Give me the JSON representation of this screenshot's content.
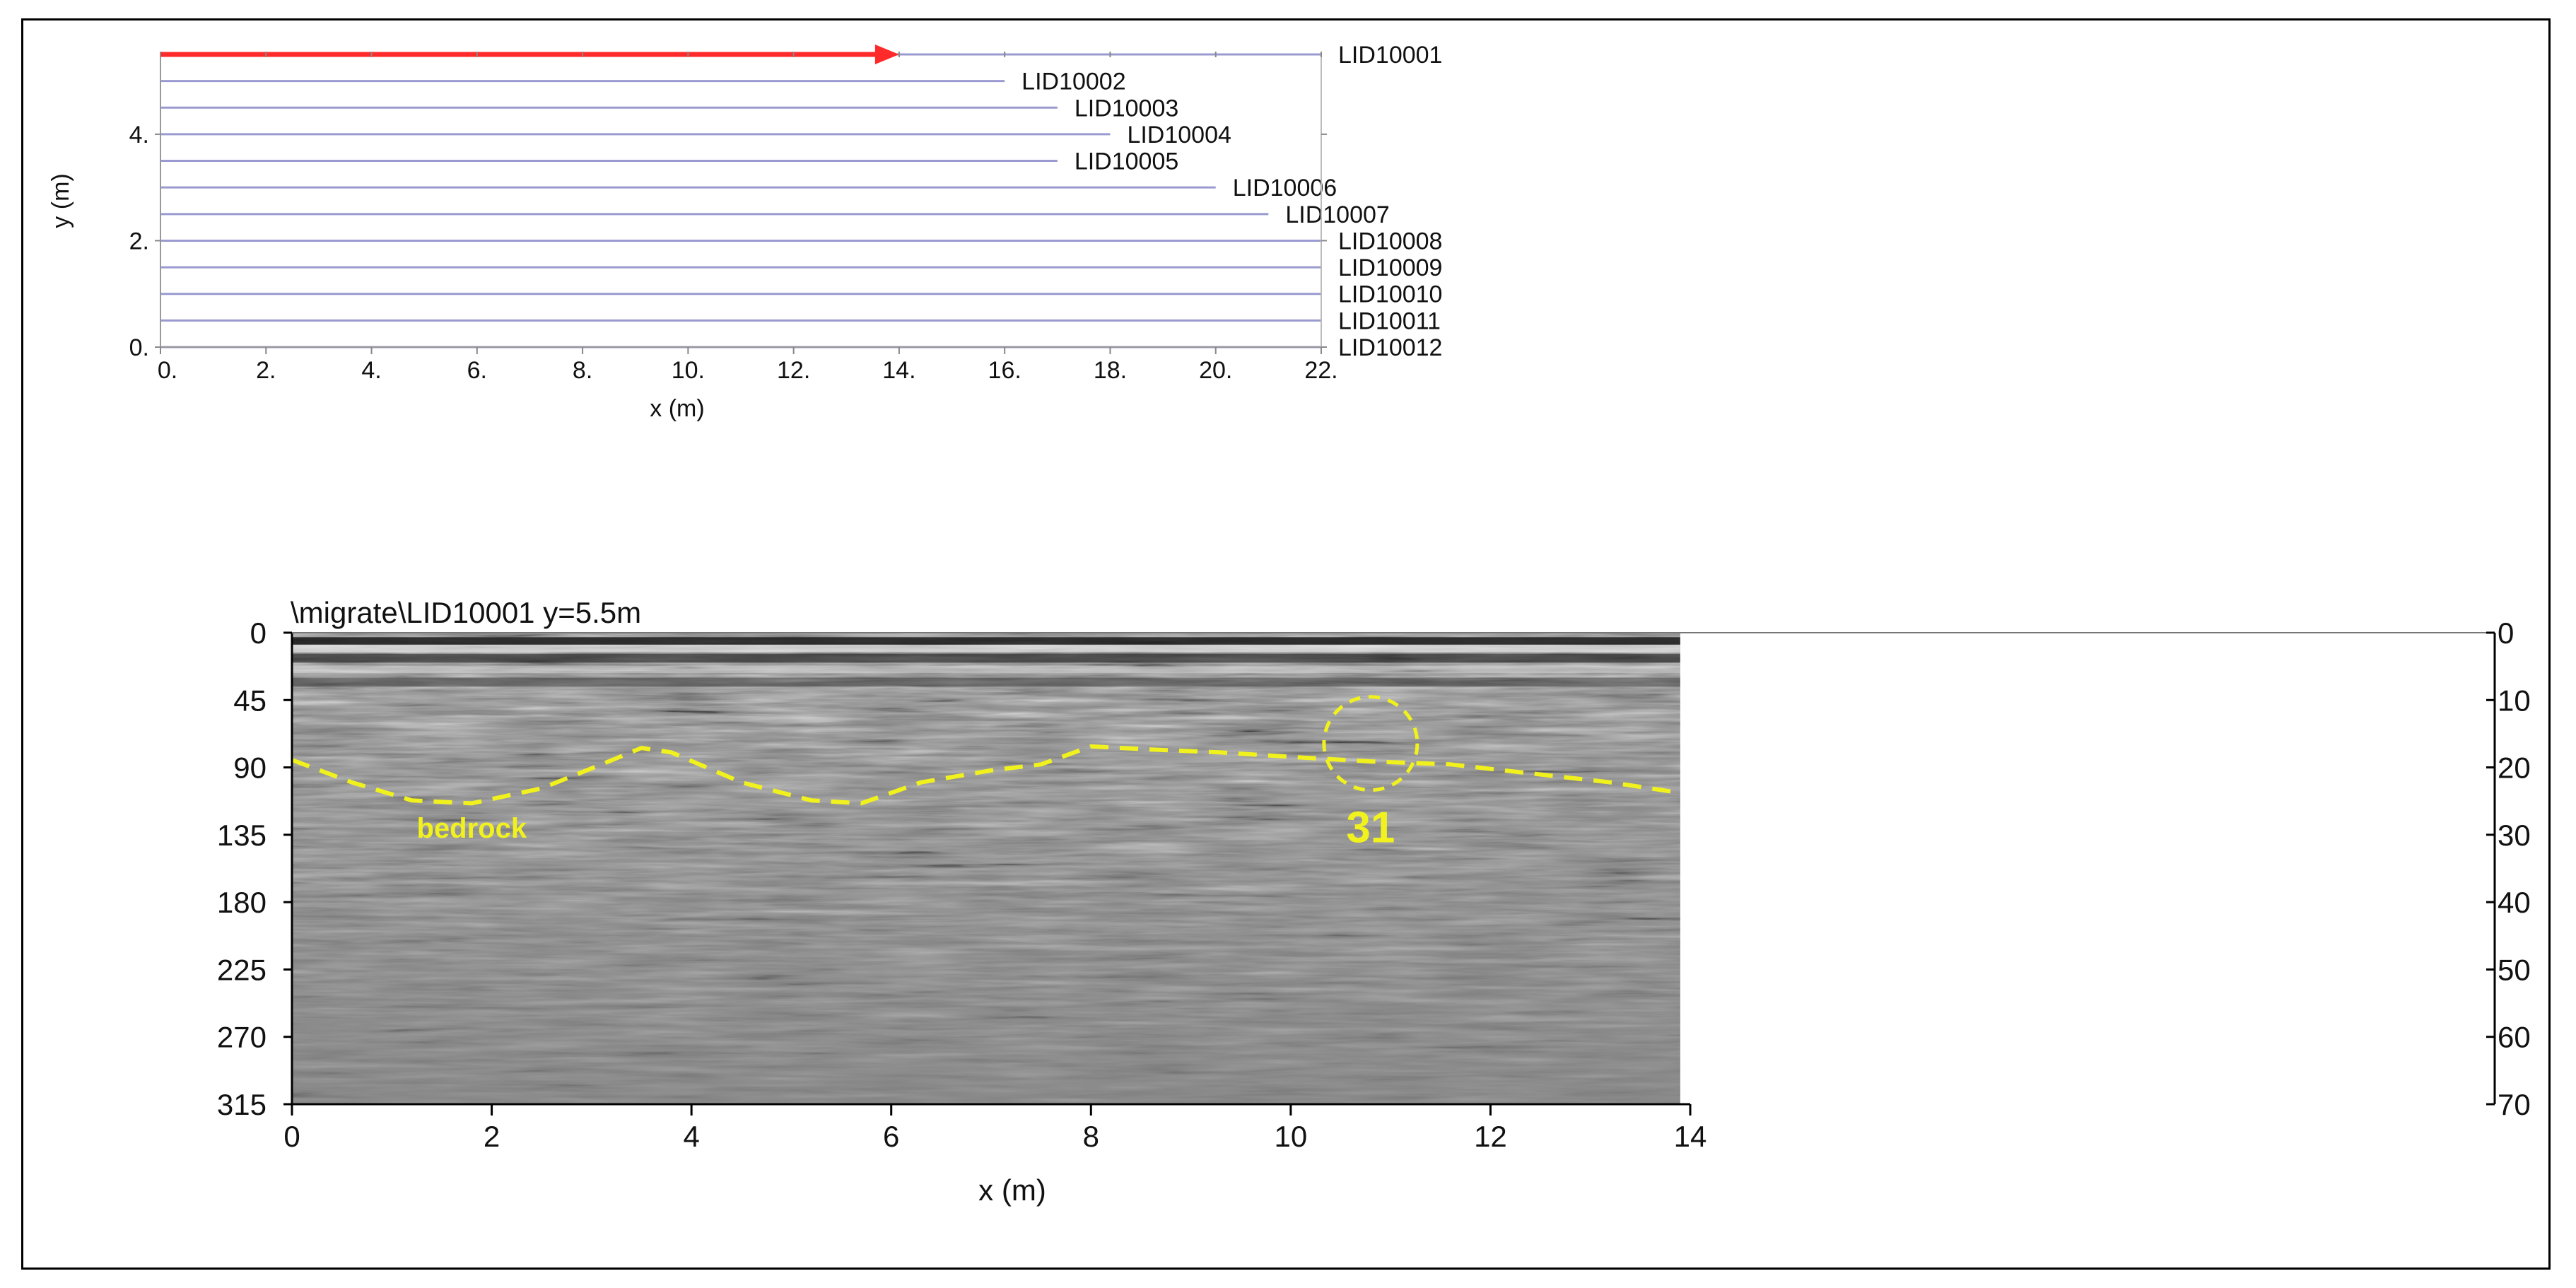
{
  "colors": {
    "survey_line": "#9a9ad0",
    "direction_arrow": "#ff2a2a",
    "annotation": "#f1f21d",
    "radargram_base": "#808080"
  },
  "chart_data": [
    {
      "type": "line",
      "panel": "survey-layout",
      "xlabel": "x (m)",
      "ylabel": "y (m)",
      "xlim": [
        0,
        22
      ],
      "ylim": [
        0,
        5.5
      ],
      "x_ticks": [
        "0.",
        "2.",
        "4.",
        "6.",
        "8.",
        "10.",
        "12.",
        "14.",
        "16.",
        "18.",
        "20.",
        "22."
      ],
      "y_ticks": [
        "0.",
        "2.",
        "4."
      ],
      "x_tick_values": [
        0,
        2,
        4,
        6,
        8,
        10,
        12,
        14,
        16,
        18,
        20,
        22
      ],
      "y_tick_values": [
        0,
        2,
        4
      ],
      "direction_arrow": {
        "x_start": 0,
        "x_end": 14,
        "y": 5.5
      },
      "series": [
        {
          "label": "LID10001",
          "y": 5.5,
          "x_start": 0,
          "x_end": 22
        },
        {
          "label": "LID10002",
          "y": 5.0,
          "x_start": 0,
          "x_end": 16
        },
        {
          "label": "LID10003",
          "y": 4.5,
          "x_start": 0,
          "x_end": 17
        },
        {
          "label": "LID10004",
          "y": 4.0,
          "x_start": 0,
          "x_end": 18
        },
        {
          "label": "LID10005",
          "y": 3.5,
          "x_start": 0,
          "x_end": 17
        },
        {
          "label": "LID10006",
          "y": 3.0,
          "x_start": 0,
          "x_end": 20
        },
        {
          "label": "LID10007",
          "y": 2.5,
          "x_start": 0,
          "x_end": 21
        },
        {
          "label": "LID10008",
          "y": 2.0,
          "x_start": 0,
          "x_end": 22
        },
        {
          "label": "LID10009",
          "y": 1.5,
          "x_start": 0,
          "x_end": 22
        },
        {
          "label": "LID10010",
          "y": 1.0,
          "x_start": 0,
          "x_end": 22
        },
        {
          "label": "LID10011",
          "y": 0.5,
          "x_start": 0,
          "x_end": 22
        },
        {
          "label": "LID10012",
          "y": 0.0,
          "x_start": 0,
          "x_end": 22
        }
      ]
    },
    {
      "type": "heatmap",
      "panel": "radargram",
      "title": "\\migrate\\LID10001    y=5.5m",
      "xlabel": "x (m)",
      "xlim": [
        0,
        14
      ],
      "x_axis_extent": 14,
      "data_extent_x": 13.9,
      "left_ticks": [
        "0",
        "45",
        "90",
        "135",
        "180",
        "225",
        "270",
        "315"
      ],
      "left_tick_values": [
        0,
        45,
        90,
        135,
        180,
        225,
        270,
        315
      ],
      "left_lim": [
        0,
        315
      ],
      "right_ticks": [
        "0",
        "10",
        "20",
        "30",
        "40",
        "50",
        "60",
        "70"
      ],
      "right_tick_values": [
        0,
        10,
        20,
        30,
        40,
        50,
        60,
        70
      ],
      "right_lim": [
        0,
        70
      ],
      "x_ticks": [
        "0",
        "2",
        "4",
        "6",
        "8",
        "10",
        "12",
        "14"
      ],
      "x_tick_values": [
        0,
        2,
        4,
        6,
        8,
        10,
        12,
        14
      ],
      "bedrock_label": "bedrock",
      "bedrock_label_pos": {
        "x": 1.8,
        "y": 137
      },
      "bedrock": [
        {
          "x": 0.0,
          "y": 85
        },
        {
          "x": 0.6,
          "y": 100
        },
        {
          "x": 1.2,
          "y": 112
        },
        {
          "x": 1.8,
          "y": 114
        },
        {
          "x": 2.5,
          "y": 104
        },
        {
          "x": 3.1,
          "y": 88
        },
        {
          "x": 3.5,
          "y": 77
        },
        {
          "x": 3.8,
          "y": 80
        },
        {
          "x": 4.5,
          "y": 100
        },
        {
          "x": 5.2,
          "y": 112
        },
        {
          "x": 5.7,
          "y": 114
        },
        {
          "x": 6.3,
          "y": 100
        },
        {
          "x": 7.0,
          "y": 92
        },
        {
          "x": 7.5,
          "y": 88
        },
        {
          "x": 8.0,
          "y": 76
        },
        {
          "x": 8.6,
          "y": 78
        },
        {
          "x": 9.3,
          "y": 80
        },
        {
          "x": 10.0,
          "y": 83
        },
        {
          "x": 10.8,
          "y": 86
        },
        {
          "x": 11.6,
          "y": 88
        },
        {
          "x": 12.4,
          "y": 94
        },
        {
          "x": 13.2,
          "y": 100
        },
        {
          "x": 13.9,
          "y": 107
        }
      ],
      "target": {
        "label": "31",
        "x": 10.8,
        "y": 74
      }
    }
  ]
}
